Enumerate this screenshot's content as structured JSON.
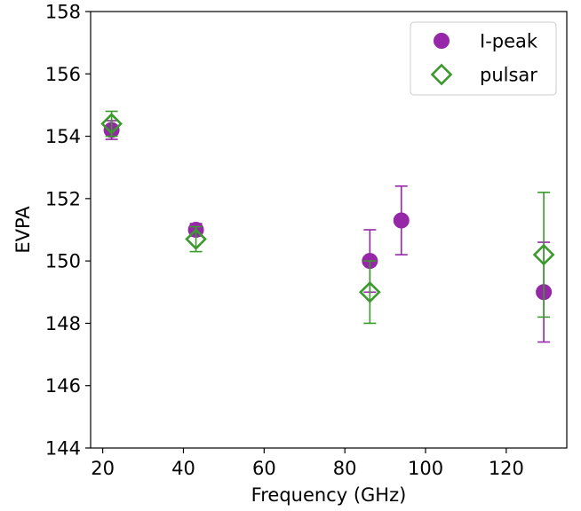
{
  "chart_data": {
    "type": "scatter",
    "xlabel": "Frequency (GHz)",
    "ylabel": "EVPA",
    "xlim": [
      17,
      135
    ],
    "ylim": [
      144,
      158
    ],
    "xticks": [
      20,
      40,
      60,
      80,
      100,
      120
    ],
    "yticks": [
      144,
      146,
      148,
      150,
      152,
      154,
      156,
      158
    ],
    "grid": false,
    "legend_position": "top-right",
    "series": [
      {
        "name": "I-peak",
        "marker": "filled-circle",
        "color": "#9527a8",
        "points": [
          {
            "x": 22.2,
            "y": 154.2,
            "err": 0.3
          },
          {
            "x": 43.1,
            "y": 151.0,
            "err": 0.2
          },
          {
            "x": 86.2,
            "y": 150.0,
            "err": 1.0
          },
          {
            "x": 94.0,
            "y": 151.3,
            "err": 1.1
          },
          {
            "x": 129.3,
            "y": 149.0,
            "err": 1.6
          }
        ]
      },
      {
        "name": "pulsar",
        "marker": "open-diamond",
        "color": "#3a9a2c",
        "points": [
          {
            "x": 22.2,
            "y": 154.4,
            "err": 0.4
          },
          {
            "x": 43.1,
            "y": 150.7,
            "err": 0.4
          },
          {
            "x": 86.2,
            "y": 149.0,
            "err": 1.0
          },
          {
            "x": 129.3,
            "y": 150.2,
            "err": 2.0
          }
        ]
      }
    ]
  }
}
